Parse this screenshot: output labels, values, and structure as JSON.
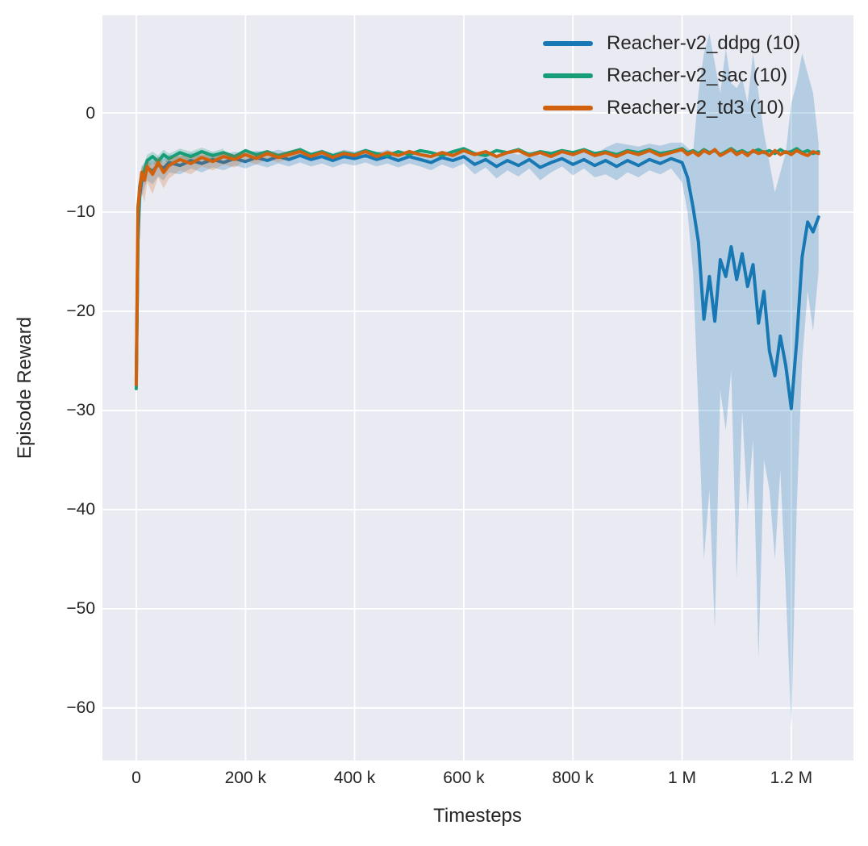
{
  "chart_data": {
    "type": "line",
    "title": "",
    "xlabel": "Timesteps",
    "ylabel": "Episode Reward",
    "grid": true,
    "legend_position": "upper right",
    "x_unit_of_series_values": "thousands of timesteps",
    "x_range": [
      -62,
      1314
    ],
    "y_range": [
      -65.3,
      9.84
    ],
    "x_ticks": {
      "values": [
        0,
        200,
        400,
        600,
        800,
        1000,
        1200
      ],
      "labels": [
        "0",
        "200 k",
        "400 k",
        "600 k",
        "800 k",
        "1 M",
        "1.2 M"
      ]
    },
    "y_ticks": {
      "values": [
        0,
        -10,
        -20,
        -30,
        -40,
        -50,
        -60
      ],
      "labels": [
        "0",
        "−10",
        "−20",
        "−30",
        "−40",
        "−50",
        "−60"
      ]
    },
    "colors": {
      "figure_background": "#ffffff",
      "axes_background": "#eaeaf2",
      "grid": "#ffffff",
      "text": "#262626"
    },
    "series": [
      {
        "key": "ddpg",
        "label": "Reacher-v2_ddpg (10)",
        "color": "#1878b4",
        "band_opacity": 0.25,
        "x": [
          0,
          3,
          6,
          10,
          15,
          20,
          30,
          40,
          50,
          60,
          80,
          100,
          120,
          140,
          160,
          180,
          200,
          220,
          240,
          260,
          280,
          300,
          320,
          340,
          360,
          380,
          400,
          420,
          440,
          460,
          480,
          500,
          520,
          540,
          560,
          580,
          600,
          620,
          640,
          660,
          680,
          700,
          720,
          740,
          760,
          780,
          800,
          820,
          840,
          860,
          880,
          900,
          920,
          940,
          960,
          980,
          1000,
          1010,
          1020,
          1030,
          1040,
          1050,
          1060,
          1070,
          1080,
          1090,
          1100,
          1110,
          1120,
          1130,
          1140,
          1150,
          1160,
          1170,
          1180,
          1190,
          1200,
          1210,
          1220,
          1230,
          1240,
          1250
        ],
        "y": [
          -27.0,
          -13,
          -8.5,
          -6.8,
          -6.0,
          -5.5,
          -5.9,
          -5.2,
          -5.6,
          -5.0,
          -5.3,
          -4.8,
          -5.1,
          -4.7,
          -5.0,
          -4.6,
          -4.9,
          -4.5,
          -4.8,
          -4.4,
          -4.7,
          -4.3,
          -4.7,
          -4.4,
          -4.8,
          -4.4,
          -4.6,
          -4.3,
          -4.7,
          -4.4,
          -4.8,
          -4.4,
          -4.7,
          -5.0,
          -4.5,
          -4.8,
          -4.4,
          -5.2,
          -4.7,
          -5.4,
          -4.8,
          -5.3,
          -4.7,
          -5.5,
          -5.0,
          -4.6,
          -5.2,
          -4.7,
          -5.3,
          -4.8,
          -5.4,
          -4.8,
          -5.3,
          -4.7,
          -5.1,
          -4.6,
          -5.0,
          -6.5,
          -9.5,
          -13.0,
          -20.8,
          -16.5,
          -21.0,
          -14.8,
          -16.5,
          -13.5,
          -16.8,
          -14.2,
          -17.5,
          -15.3,
          -21.2,
          -18.0,
          -24.0,
          -26.5,
          -22.5,
          -25.5,
          -29.8,
          -23.0,
          -14.5,
          -11.0,
          -12.0,
          -10.5
        ],
        "band": {
          "x": [
            0,
            3,
            6,
            10,
            15,
            20,
            30,
            40,
            50,
            60,
            80,
            100,
            120,
            140,
            160,
            180,
            200,
            220,
            240,
            260,
            280,
            300,
            320,
            340,
            360,
            380,
            400,
            420,
            440,
            460,
            480,
            500,
            520,
            540,
            560,
            580,
            600,
            620,
            640,
            660,
            680,
            700,
            720,
            740,
            760,
            780,
            800,
            820,
            840,
            860,
            880,
            900,
            920,
            940,
            960,
            980,
            1000,
            1010,
            1020,
            1030,
            1040,
            1050,
            1060,
            1070,
            1080,
            1090,
            1100,
            1110,
            1120,
            1130,
            1140,
            1150,
            1160,
            1170,
            1180,
            1190,
            1200,
            1210,
            1220,
            1230,
            1240,
            1250
          ],
          "lo": [
            -27.5,
            -16,
            -11,
            -8.5,
            -7.5,
            -6.8,
            -7.2,
            -6.4,
            -6.8,
            -6.0,
            -6.2,
            -5.6,
            -6.0,
            -5.5,
            -5.8,
            -5.3,
            -5.6,
            -5.2,
            -5.5,
            -5.1,
            -5.4,
            -5.0,
            -5.4,
            -5.1,
            -5.5,
            -5.1,
            -5.3,
            -5.0,
            -5.4,
            -5.1,
            -5.5,
            -5.1,
            -5.4,
            -5.8,
            -5.2,
            -5.6,
            -5.1,
            -6.2,
            -5.5,
            -6.6,
            -5.8,
            -6.4,
            -5.6,
            -6.8,
            -6.0,
            -5.4,
            -6.3,
            -5.6,
            -6.5,
            -6.2,
            -6.8,
            -6.0,
            -6.5,
            -5.8,
            -6.2,
            -5.6,
            -7.0,
            -10,
            -16,
            -30,
            -45,
            -38,
            -52,
            -28,
            -32,
            -26,
            -47,
            -30,
            -40,
            -33,
            -55,
            -35,
            -38,
            -45,
            -36,
            -48,
            -62,
            -40,
            -25,
            -18,
            -22,
            -16
          ],
          "hi": [
            -26.5,
            -10,
            -7,
            -5.5,
            -5.0,
            -4.6,
            -4.8,
            -4.4,
            -4.6,
            -4.2,
            -4.4,
            -4.0,
            -4.3,
            -4.0,
            -4.2,
            -3.9,
            -4.1,
            -3.8,
            -4.0,
            -3.7,
            -4.0,
            -3.6,
            -4.0,
            -3.7,
            -4.1,
            -3.7,
            -3.9,
            -3.6,
            -4.0,
            -3.7,
            -4.1,
            -3.7,
            -4.0,
            -4.2,
            -3.8,
            -4.0,
            -3.7,
            -4.2,
            -3.9,
            -4.3,
            -4.0,
            -4.2,
            -3.9,
            -4.3,
            -4.0,
            -3.8,
            -4.1,
            -3.9,
            -4.2,
            -3.5,
            -3.0,
            -3.2,
            -3.4,
            -3.1,
            -3.3,
            -3.0,
            -3.0,
            -3.5,
            -4.0,
            2,
            6,
            8,
            5,
            2,
            6.5,
            3,
            2.5,
            3.5,
            1,
            6,
            2,
            -2,
            -5,
            -8,
            -6,
            -4,
            1,
            3,
            6,
            4,
            2,
            -3
          ]
        }
      },
      {
        "key": "sac",
        "label": "Reacher-v2_sac (10)",
        "color": "#169e78",
        "band_opacity": 0.25,
        "x": [
          0,
          3,
          6,
          10,
          15,
          20,
          30,
          40,
          50,
          60,
          80,
          100,
          120,
          140,
          160,
          180,
          200,
          220,
          240,
          260,
          280,
          300,
          320,
          340,
          360,
          380,
          400,
          420,
          440,
          460,
          480,
          500,
          520,
          540,
          560,
          580,
          600,
          620,
          640,
          660,
          680,
          700,
          720,
          740,
          760,
          780,
          800,
          820,
          840,
          860,
          880,
          900,
          920,
          940,
          960,
          980,
          1000,
          1010,
          1020,
          1030,
          1040,
          1050,
          1060,
          1070,
          1080,
          1090,
          1100,
          1110,
          1120,
          1130,
          1140,
          1150,
          1160,
          1170,
          1180,
          1190,
          1200,
          1210,
          1220,
          1230,
          1240,
          1250
        ],
        "y": [
          -27.8,
          -12,
          -7.5,
          -6.2,
          -5.8,
          -4.8,
          -4.4,
          -4.9,
          -4.2,
          -4.6,
          -4.0,
          -4.4,
          -3.9,
          -4.3,
          -4.0,
          -4.4,
          -3.8,
          -4.2,
          -3.9,
          -4.3,
          -4.0,
          -3.7,
          -4.2,
          -3.9,
          -4.3,
          -4.0,
          -4.2,
          -3.8,
          -4.1,
          -4.3,
          -3.9,
          -4.2,
          -3.8,
          -4.0,
          -4.3,
          -3.9,
          -3.6,
          -4.1,
          -4.3,
          -3.8,
          -4.0,
          -3.7,
          -4.2,
          -3.9,
          -4.1,
          -3.8,
          -4.0,
          -3.7,
          -4.1,
          -3.9,
          -4.2,
          -3.8,
          -4.0,
          -3.7,
          -4.1,
          -3.9,
          -3.6,
          -4.0,
          -3.8,
          -4.1,
          -3.7,
          -4.0,
          -3.8,
          -4.2,
          -3.9,
          -3.6,
          -4.0,
          -3.8,
          -4.1,
          -3.9,
          -3.7,
          -4.0,
          -3.8,
          -4.1,
          -3.7,
          -4.0,
          -3.9,
          -3.6,
          -4.0,
          -3.8,
          -4.1,
          -3.9
        ],
        "band": {
          "x": [
            0,
            3,
            6,
            10,
            15,
            20,
            30,
            40,
            50,
            60,
            80,
            100,
            120,
            140,
            160
          ],
          "lo": [
            -51,
            -13.5,
            -8.6,
            -7.2,
            -6.6,
            -5.5,
            -5.1,
            -5.6,
            -4.8,
            -5.2,
            -4.5,
            -4.9,
            -4.3,
            -4.7,
            -4.4
          ],
          "hi": [
            -50,
            -10.5,
            -6.6,
            -5.4,
            -5.0,
            -4.2,
            -3.9,
            -4.3,
            -3.7,
            -4.1,
            -3.6,
            -3.9,
            -3.5,
            -3.9,
            -3.6
          ]
        }
      },
      {
        "key": "td3",
        "label": "Reacher-v2_td3 (10)",
        "color": "#d2610e",
        "band_opacity": 0.22,
        "x": [
          0,
          3,
          6,
          10,
          15,
          20,
          30,
          40,
          50,
          60,
          80,
          100,
          120,
          140,
          160,
          180,
          200,
          220,
          240,
          260,
          280,
          300,
          320,
          340,
          360,
          380,
          400,
          420,
          440,
          460,
          480,
          500,
          520,
          540,
          560,
          580,
          600,
          620,
          640,
          660,
          680,
          700,
          720,
          740,
          760,
          780,
          800,
          820,
          840,
          860,
          880,
          900,
          920,
          940,
          960,
          980,
          1000,
          1010,
          1020,
          1030,
          1040,
          1050,
          1060,
          1070,
          1080,
          1090,
          1100,
          1110,
          1120,
          1130,
          1140,
          1150,
          1160,
          1170,
          1180,
          1190,
          1200,
          1210,
          1220,
          1230,
          1240,
          1250
        ],
        "y": [
          -27.4,
          -9.5,
          -7.8,
          -6.0,
          -6.8,
          -5.4,
          -6.2,
          -5.0,
          -6.0,
          -5.3,
          -4.7,
          -5.1,
          -4.5,
          -4.9,
          -4.4,
          -4.7,
          -4.2,
          -4.6,
          -4.1,
          -4.5,
          -4.2,
          -3.9,
          -4.4,
          -4.0,
          -4.5,
          -4.1,
          -4.3,
          -3.9,
          -4.4,
          -4.0,
          -4.3,
          -3.9,
          -4.2,
          -4.4,
          -4.0,
          -4.3,
          -3.8,
          -4.2,
          -3.9,
          -4.4,
          -4.0,
          -3.8,
          -4.3,
          -4.0,
          -4.4,
          -3.9,
          -4.2,
          -3.8,
          -4.3,
          -4.0,
          -4.4,
          -3.9,
          -4.2,
          -3.8,
          -4.3,
          -4.0,
          -3.7,
          -4.2,
          -3.9,
          -4.3,
          -3.8,
          -4.1,
          -3.7,
          -4.3,
          -4.0,
          -3.7,
          -4.2,
          -3.9,
          -4.3,
          -3.8,
          -4.1,
          -3.9,
          -4.3,
          -3.8,
          -4.2,
          -3.9,
          -4.2,
          -3.8,
          -4.1,
          -4.3,
          -3.9,
          -4.1
        ],
        "band": {
          "x": [
            0,
            3,
            6,
            10,
            15,
            20,
            30,
            40,
            50,
            60,
            80,
            100,
            120,
            140,
            160,
            180,
            200,
            220,
            240,
            260,
            280,
            300
          ],
          "lo": [
            -28,
            -13,
            -10,
            -8,
            -9,
            -7,
            -8.2,
            -6.5,
            -7.6,
            -6.6,
            -5.8,
            -6.2,
            -5.4,
            -5.8,
            -5.2,
            -5.5,
            -4.8,
            -5.2,
            -4.6,
            -5.0,
            -4.6,
            -4.2
          ],
          "hi": [
            -27,
            -8.5,
            -7,
            -5.3,
            -5.6,
            -4.8,
            -5.2,
            -4.4,
            -5.0,
            -4.6,
            -4.2,
            -4.5,
            -4.1,
            -4.4,
            -4.0,
            -4.2,
            -3.9,
            -4.2,
            -3.8,
            -4.1,
            -3.9,
            -3.6
          ]
        }
      }
    ]
  }
}
